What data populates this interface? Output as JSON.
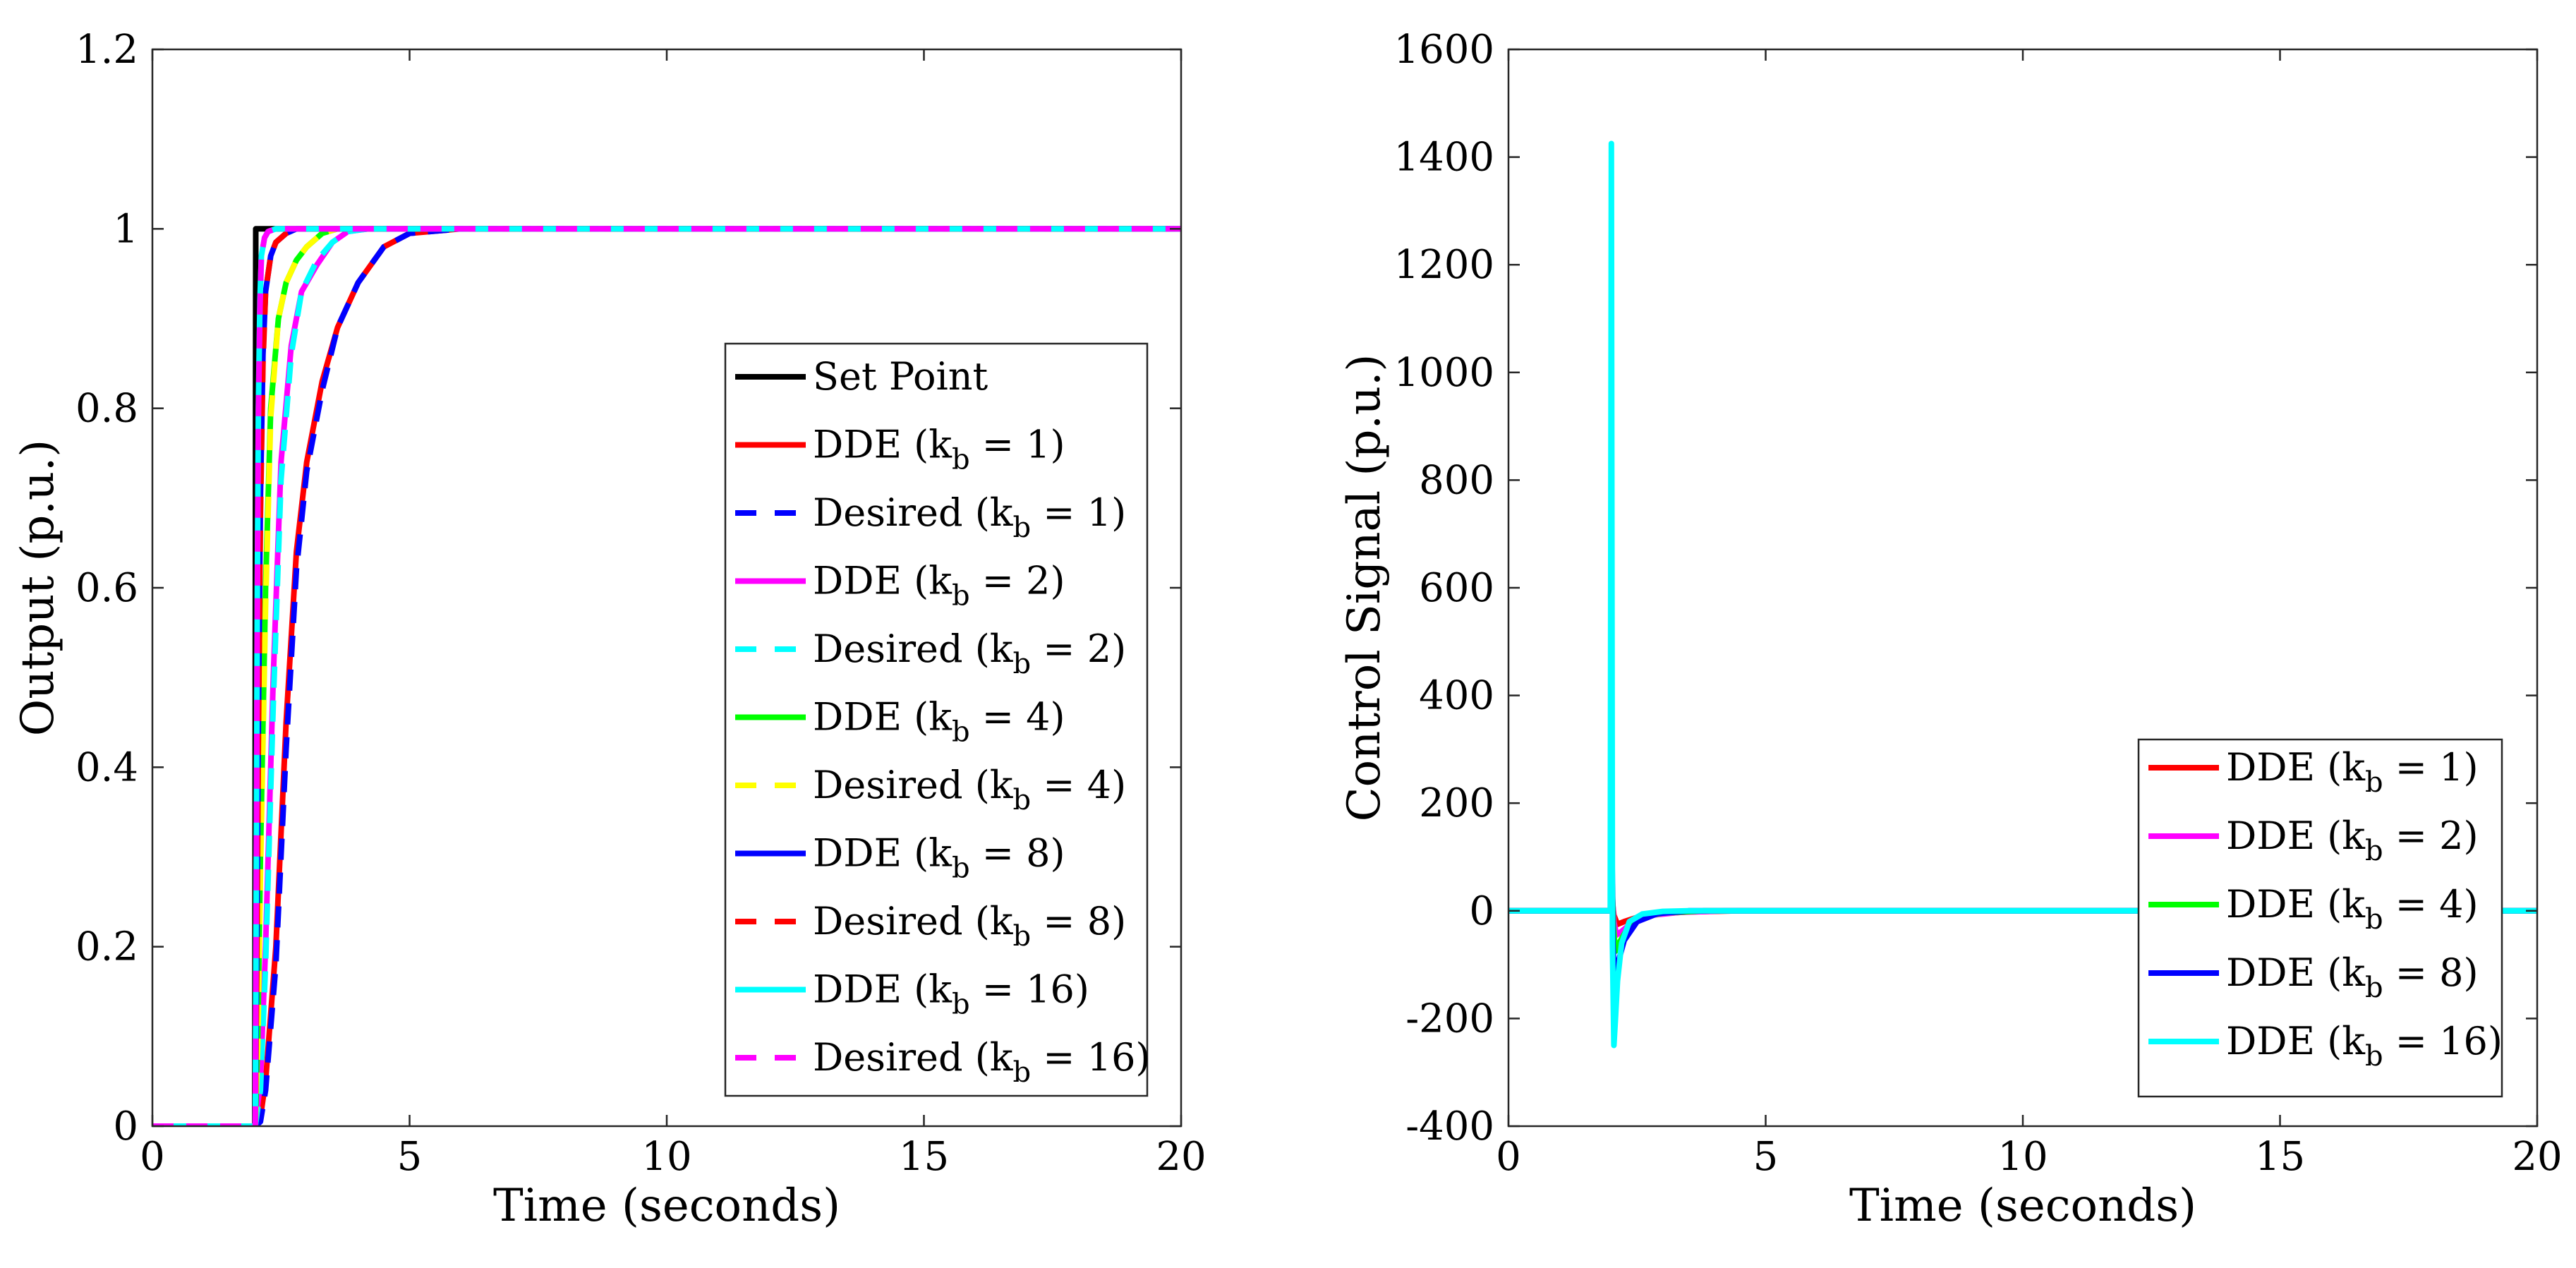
{
  "chart_data": [
    {
      "type": "line",
      "xlabel": "Time (seconds)",
      "ylabel": "Output (p.u.)",
      "xlim": [
        0,
        20
      ],
      "ylim": [
        0,
        1.2
      ],
      "xticks": [
        0,
        5,
        10,
        15,
        20
      ],
      "xtick_labels": [
        "0",
        "5",
        "10",
        "15",
        "20"
      ],
      "yticks": [
        0,
        0.2,
        0.4,
        0.6,
        0.8,
        1,
        1.2
      ],
      "ytick_labels": [
        "0",
        "0.2",
        "0.4",
        "0.6",
        "0.8",
        "1",
        "1.2"
      ],
      "legend_position": "right-middle",
      "series": [
        {
          "label": "Set Point",
          "legend_main": "Set Point",
          "legend_sub": "",
          "legend_tail": "",
          "color": "#000000",
          "dash": false,
          "x": [
            0,
            1.99,
            2.0,
            2.01,
            20
          ],
          "y": [
            0,
            0,
            0.5,
            1,
            1
          ]
        },
        {
          "label": "DDE (k_b = 1)",
          "legend_main": "DDE (k",
          "legend_sub": "b",
          "legend_tail": " = 1)",
          "color": "#ff0000",
          "dash": false,
          "x": [
            0,
            2.0,
            2.1,
            2.2,
            2.4,
            2.6,
            2.8,
            3.0,
            3.3,
            3.6,
            4.0,
            4.5,
            5.0,
            6.0,
            7.0,
            20
          ],
          "y": [
            0,
            0,
            0.01,
            0.05,
            0.2,
            0.45,
            0.64,
            0.74,
            0.83,
            0.89,
            0.94,
            0.98,
            0.995,
            1,
            1,
            1
          ]
        },
        {
          "label": "Desired (k_b = 1)",
          "legend_main": "Desired (k",
          "legend_sub": "b",
          "legend_tail": " = 1)",
          "color": "#0000ff",
          "dash": true,
          "x": [
            0,
            2.0,
            2.1,
            2.2,
            2.4,
            2.6,
            2.8,
            3.0,
            3.3,
            3.6,
            4.0,
            4.5,
            5.0,
            6.0,
            7.0,
            20
          ],
          "y": [
            0,
            0,
            0.005,
            0.04,
            0.18,
            0.42,
            0.62,
            0.73,
            0.82,
            0.89,
            0.94,
            0.98,
            0.995,
            1,
            1,
            1
          ]
        },
        {
          "label": "DDE (k_b = 2)",
          "legend_main": "DDE (k",
          "legend_sub": "b",
          "legend_tail": " = 2)",
          "color": "#ff00ff",
          "dash": false,
          "x": [
            0,
            2.0,
            2.1,
            2.2,
            2.35,
            2.5,
            2.7,
            2.9,
            3.2,
            3.5,
            3.8,
            4.2,
            5.0,
            20
          ],
          "y": [
            0,
            0,
            0.05,
            0.2,
            0.5,
            0.74,
            0.87,
            0.93,
            0.96,
            0.985,
            0.997,
            1,
            1,
            1
          ]
        },
        {
          "label": "Desired (k_b = 2)",
          "legend_main": "Desired (k",
          "legend_sub": "b",
          "legend_tail": " = 2)",
          "color": "#00ffff",
          "dash": true,
          "x": [
            0,
            2.0,
            2.1,
            2.2,
            2.35,
            2.5,
            2.7,
            2.9,
            3.2,
            3.5,
            3.8,
            4.2,
            5.0,
            20
          ],
          "y": [
            0,
            0,
            0.04,
            0.18,
            0.47,
            0.72,
            0.86,
            0.93,
            0.965,
            0.985,
            0.997,
            1,
            1,
            1
          ]
        },
        {
          "label": "DDE (k_b = 4)",
          "legend_main": "DDE (k",
          "legend_sub": "b",
          "legend_tail": " = 4)",
          "color": "#00ff00",
          "dash": false,
          "x": [
            0,
            2.0,
            2.05,
            2.1,
            2.2,
            2.3,
            2.45,
            2.6,
            2.8,
            3.0,
            3.3,
            3.6,
            4.0,
            20
          ],
          "y": [
            0,
            0,
            0.1,
            0.3,
            0.6,
            0.8,
            0.9,
            0.94,
            0.965,
            0.98,
            0.995,
            1,
            1,
            1
          ]
        },
        {
          "label": "Desired (k_b = 4)",
          "legend_main": "Desired (k",
          "legend_sub": "b",
          "legend_tail": " = 4)",
          "color": "#ffff00",
          "dash": true,
          "x": [
            0,
            2.0,
            2.05,
            2.1,
            2.2,
            2.3,
            2.45,
            2.6,
            2.8,
            3.0,
            3.3,
            3.6,
            4.0,
            20
          ],
          "y": [
            0,
            0,
            0.09,
            0.28,
            0.58,
            0.79,
            0.9,
            0.94,
            0.965,
            0.98,
            0.995,
            1,
            1,
            1
          ]
        },
        {
          "label": "DDE (k_b = 8)",
          "legend_main": "DDE (k",
          "legend_sub": "b",
          "legend_tail": " = 8)",
          "color": "#0000ff",
          "dash": false,
          "x": [
            0,
            2.0,
            2.03,
            2.06,
            2.1,
            2.15,
            2.2,
            2.3,
            2.4,
            2.6,
            2.8,
            3.0,
            3.2,
            20
          ],
          "y": [
            0,
            0,
            0.2,
            0.45,
            0.7,
            0.86,
            0.93,
            0.97,
            0.985,
            0.995,
            1,
            1,
            1,
            1
          ]
        },
        {
          "label": "Desired (k_b = 8)",
          "legend_main": "Desired (k",
          "legend_sub": "b",
          "legend_tail": " = 8)",
          "color": "#ff0000",
          "dash": true,
          "x": [
            0,
            2.0,
            2.03,
            2.06,
            2.1,
            2.15,
            2.2,
            2.3,
            2.4,
            2.6,
            2.8,
            3.0,
            3.2,
            20
          ],
          "y": [
            0,
            0,
            0.18,
            0.43,
            0.68,
            0.85,
            0.93,
            0.97,
            0.985,
            0.995,
            1,
            1,
            1,
            1
          ]
        },
        {
          "label": "DDE (k_b = 16)",
          "legend_main": "DDE (k",
          "legend_sub": "b",
          "legend_tail": " = 16)",
          "color": "#00ffff",
          "dash": false,
          "x": [
            0,
            2.0,
            2.02,
            2.04,
            2.06,
            2.09,
            2.12,
            2.18,
            2.25,
            2.4,
            2.6,
            20
          ],
          "y": [
            0,
            0,
            0.3,
            0.6,
            0.8,
            0.92,
            0.97,
            0.99,
            0.997,
            1,
            1,
            1
          ]
        },
        {
          "label": "Desired (k_b = 16)",
          "legend_main": "Desired (k",
          "legend_sub": "b",
          "legend_tail": " = 16)",
          "color": "#ff00ff",
          "dash": true,
          "x": [
            0,
            2.0,
            2.02,
            2.04,
            2.06,
            2.09,
            2.12,
            2.18,
            2.25,
            2.4,
            2.6,
            20
          ],
          "y": [
            0,
            0,
            0.28,
            0.58,
            0.79,
            0.91,
            0.97,
            0.99,
            0.997,
            1,
            1,
            1
          ]
        }
      ]
    },
    {
      "type": "line",
      "xlabel": "Time (seconds)",
      "ylabel": "Control Signal (p.u.)",
      "xlim": [
        0,
        20
      ],
      "ylim": [
        -400,
        1600
      ],
      "xticks": [
        0,
        5,
        10,
        15,
        20
      ],
      "xtick_labels": [
        "0",
        "5",
        "10",
        "15",
        "20"
      ],
      "yticks": [
        -400,
        -200,
        0,
        200,
        400,
        600,
        800,
        1000,
        1200,
        1400,
        1600
      ],
      "ytick_labels": [
        "-400",
        "-200",
        "0",
        "200",
        "400",
        "600",
        "800",
        "1000",
        "1200",
        "1400",
        "1600"
      ],
      "legend_position": "bottom-right",
      "series": [
        {
          "label": "DDE (k_b = 1)",
          "legend_main": "DDE (k",
          "legend_sub": "b",
          "legend_tail": " = 1)",
          "color": "#ff0000",
          "dash": false,
          "x": [
            0,
            1.99,
            2.0,
            2.05,
            2.12,
            2.25,
            2.5,
            3.0,
            3.5,
            4.5,
            20
          ],
          "y": [
            0,
            0,
            35,
            -8,
            -25,
            -20,
            -12,
            -5,
            -2,
            0,
            0
          ]
        },
        {
          "label": "DDE (k_b = 2)",
          "legend_main": "DDE (k",
          "legend_sub": "b",
          "legend_tail": " = 2)",
          "color": "#ff00ff",
          "dash": false,
          "x": [
            0,
            1.99,
            2.0,
            2.05,
            2.1,
            2.2,
            2.4,
            2.8,
            3.3,
            4.2,
            20
          ],
          "y": [
            0,
            0,
            60,
            -20,
            -45,
            -38,
            -22,
            -8,
            -3,
            0,
            0
          ]
        },
        {
          "label": "DDE (k_b = 4)",
          "legend_main": "DDE (k",
          "legend_sub": "b",
          "legend_tail": " = 4)",
          "color": "#00ff00",
          "dash": false,
          "x": [
            0,
            1.99,
            2.0,
            2.04,
            2.08,
            2.15,
            2.3,
            2.6,
            3.0,
            3.8,
            20
          ],
          "y": [
            0,
            0,
            110,
            -30,
            -75,
            -60,
            -35,
            -12,
            -4,
            0,
            0
          ]
        },
        {
          "label": "DDE (k_b = 8)",
          "legend_main": "DDE (k",
          "legend_sub": "b",
          "legend_tail": " = 8)",
          "color": "#0000ff",
          "dash": false,
          "x": [
            0,
            1.99,
            2.0,
            2.03,
            2.06,
            2.12,
            2.25,
            2.5,
            2.9,
            3.5,
            20
          ],
          "y": [
            0,
            0,
            250,
            -60,
            -130,
            -100,
            -55,
            -20,
            -5,
            0,
            0
          ]
        },
        {
          "label": "DDE (k_b = 16)",
          "legend_main": "DDE (k",
          "legend_sub": "b",
          "legend_tail": " = 16)",
          "color": "#00ffff",
          "dash": false,
          "x": [
            0,
            1.98,
            2.0,
            2.02,
            2.05,
            2.08,
            2.12,
            2.2,
            2.35,
            2.6,
            3.0,
            3.5,
            20
          ],
          "y": [
            0,
            0,
            1425,
            -60,
            -250,
            -200,
            -130,
            -60,
            -20,
            -6,
            -1,
            0,
            0
          ]
        }
      ]
    }
  ]
}
